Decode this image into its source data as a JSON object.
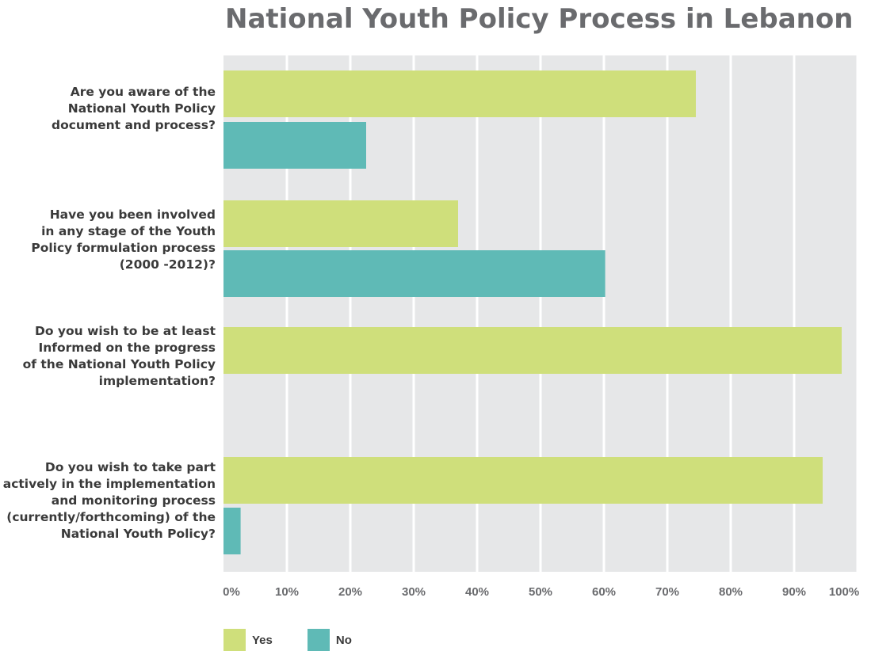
{
  "chart_data": {
    "type": "bar",
    "orientation": "horizontal",
    "title": "National Youth Policy Process in Lebanon",
    "categories": [
      "Are you aware of the National Youth Policy document and process?",
      "Have you been involved in any stage of the Youth Policy formulation process (2000 -2012)?",
      "Do you wish to be at least Informed on the progress of the National Youth Policy implementation?",
      "Do you wish to take part actively in the implementation and monitoring process (currently/forthcoming) of the National Youth Policy?"
    ],
    "category_lines": [
      [
        "Are you aware of the",
        "National Youth Policy",
        "document and process?"
      ],
      [
        "Have you been involved",
        "in any stage of the Youth",
        "Policy formulation process",
        "(2000 -2012)?"
      ],
      [
        "Do you wish to be at least",
        "Informed on the progress",
        "of the National Youth Policy",
        "implementation?"
      ],
      [
        "Do you wish to take part",
        "actively in the implementation",
        "and monitoring process",
        "(currently/forthcoming) of the",
        "National Youth Policy?"
      ]
    ],
    "series": [
      {
        "name": "Yes",
        "color": "#cfdf7b",
        "values": [
          74.5,
          37,
          97.5,
          94.5
        ]
      },
      {
        "name": "No",
        "color": "#5fbab6",
        "values": [
          22.5,
          60.2,
          0,
          2.7
        ]
      }
    ],
    "xlim": [
      0,
      100
    ],
    "xticks": [
      "0%",
      "10%",
      "20%",
      "30%",
      "40%",
      "50%",
      "60%",
      "70%",
      "80%",
      "90%",
      "100%"
    ],
    "grid": true,
    "legend_position": "bottom-left",
    "colors": {
      "plot_background": "#e6e7e8",
      "grid": "#ffffff"
    }
  }
}
